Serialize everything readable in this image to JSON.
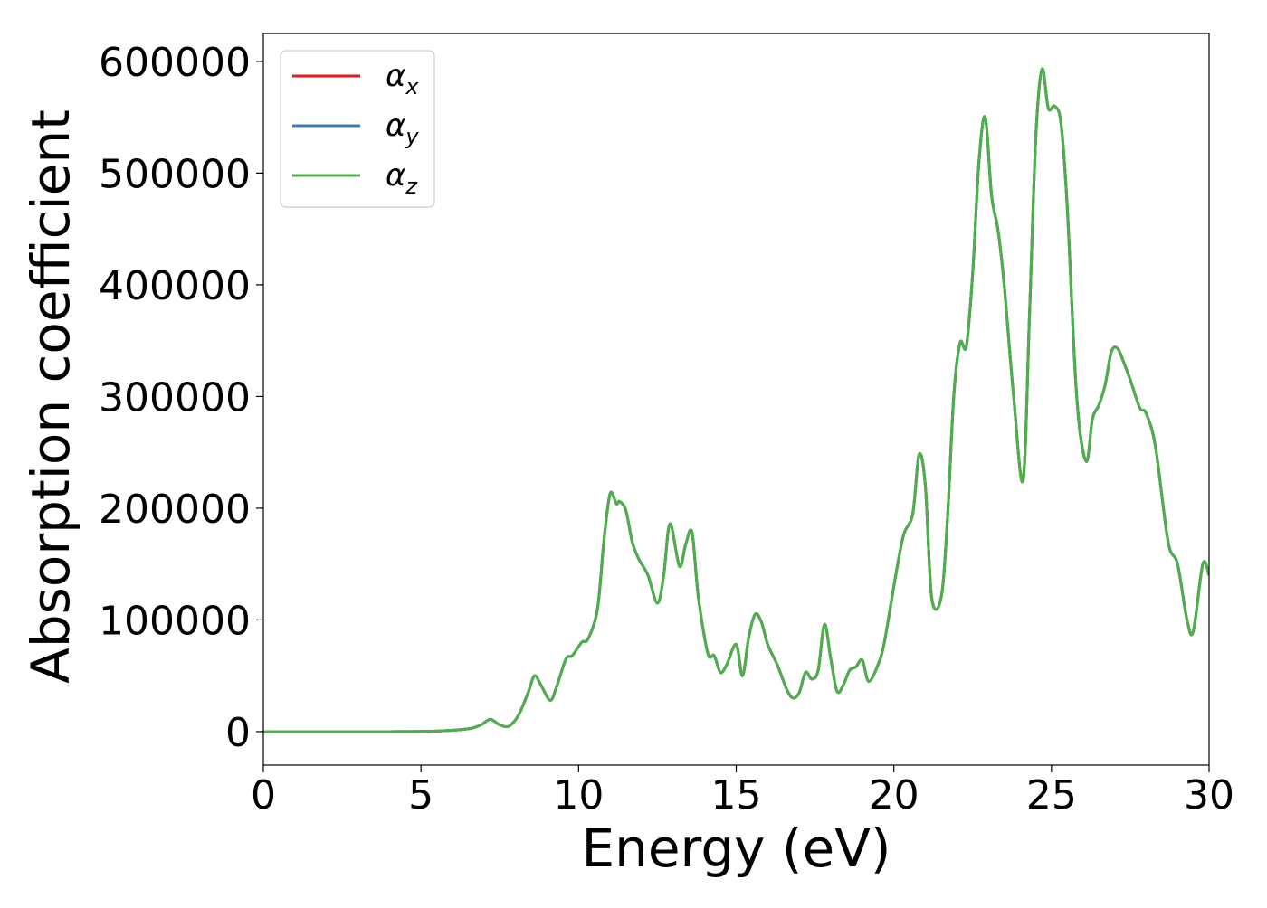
{
  "chart_data": {
    "type": "line",
    "title": "",
    "xlabel": "Energy (eV)",
    "ylabel": "Absorption coefficient",
    "xlim": [
      0,
      30
    ],
    "ylim": [
      -30000,
      625000
    ],
    "xticks": [
      0,
      5,
      10,
      15,
      20,
      25,
      30
    ],
    "yticks": [
      0,
      100000,
      200000,
      300000,
      400000,
      500000,
      600000
    ],
    "grid": false,
    "legend_position": "top-left",
    "x": [
      0,
      2,
      4,
      5.5,
      6.5,
      6.9,
      7.2,
      7.5,
      7.8,
      8.1,
      8.4,
      8.6,
      8.8,
      9.1,
      9.3,
      9.6,
      9.8,
      10.1,
      10.3,
      10.6,
      10.8,
      11.0,
      11.2,
      11.3,
      11.5,
      11.7,
      11.9,
      12.2,
      12.5,
      12.7,
      12.9,
      13.2,
      13.4,
      13.6,
      13.8,
      14.1,
      14.3,
      14.5,
      14.7,
      15.0,
      15.2,
      15.4,
      15.6,
      15.8,
      16.0,
      16.3,
      16.6,
      16.8,
      17.0,
      17.2,
      17.4,
      17.6,
      17.8,
      18.0,
      18.2,
      18.4,
      18.6,
      18.8,
      19.0,
      19.2,
      19.5,
      19.7,
      20.0,
      20.3,
      20.6,
      20.8,
      21.0,
      21.2,
      21.5,
      21.7,
      21.9,
      22.1,
      22.3,
      22.5,
      22.7,
      22.9,
      23.1,
      23.3,
      23.5,
      23.8,
      24.1,
      24.3,
      24.5,
      24.7,
      24.9,
      25.1,
      25.3,
      25.5,
      25.8,
      26.1,
      26.3,
      26.5,
      26.7,
      26.9,
      27.1,
      27.3,
      27.5,
      27.8,
      28.0,
      28.3,
      28.7,
      29.0,
      29.3,
      29.5,
      29.8,
      30.0
    ],
    "series": [
      {
        "name": "α_x",
        "color": "#e41a1c",
        "values": [
          0,
          0,
          0,
          500,
          2500,
          6000,
          11000,
          6000,
          5000,
          15000,
          35000,
          50000,
          42000,
          28000,
          40000,
          65000,
          68000,
          80000,
          83000,
          110000,
          170000,
          213000,
          204000,
          206000,
          198000,
          170000,
          155000,
          140000,
          115000,
          140000,
          186000,
          148000,
          168000,
          178000,
          120000,
          70000,
          68000,
          53000,
          60000,
          78000,
          50000,
          85000,
          105000,
          98000,
          78000,
          60000,
          38000,
          30000,
          35000,
          53000,
          47000,
          55000,
          96000,
          65000,
          36000,
          42000,
          55000,
          58000,
          64000,
          45000,
          60000,
          80000,
          130000,
          175000,
          195000,
          248000,
          220000,
          120000,
          120000,
          190000,
          300000,
          348000,
          345000,
          410000,
          510000,
          550000,
          480000,
          450000,
          400000,
          300000,
          225000,
          370000,
          530000,
          593000,
          558000,
          560000,
          545000,
          470000,
          300000,
          242000,
          280000,
          292000,
          310000,
          340000,
          343000,
          330000,
          315000,
          290000,
          285000,
          255000,
          170000,
          150000,
          100000,
          90000,
          150000,
          140000
        ]
      },
      {
        "name": "α_y",
        "color": "#377eb8",
        "values": [
          0,
          0,
          0,
          500,
          2500,
          6000,
          11000,
          6000,
          5000,
          15000,
          35000,
          50000,
          42000,
          28000,
          40000,
          65000,
          68000,
          80000,
          83000,
          110000,
          170000,
          213000,
          204000,
          206000,
          198000,
          170000,
          155000,
          140000,
          115000,
          140000,
          186000,
          148000,
          168000,
          178000,
          120000,
          70000,
          68000,
          53000,
          60000,
          78000,
          50000,
          85000,
          105000,
          98000,
          78000,
          60000,
          38000,
          30000,
          35000,
          53000,
          47000,
          55000,
          96000,
          65000,
          36000,
          42000,
          55000,
          58000,
          64000,
          45000,
          60000,
          80000,
          130000,
          175000,
          195000,
          248000,
          220000,
          120000,
          120000,
          190000,
          300000,
          348000,
          345000,
          410000,
          510000,
          550000,
          480000,
          450000,
          400000,
          300000,
          225000,
          370000,
          530000,
          593000,
          558000,
          560000,
          545000,
          470000,
          300000,
          242000,
          280000,
          292000,
          310000,
          340000,
          343000,
          330000,
          315000,
          290000,
          285000,
          255000,
          170000,
          150000,
          100000,
          90000,
          150000,
          140000
        ]
      },
      {
        "name": "α_z",
        "color": "#4daf4a",
        "values": [
          0,
          0,
          0,
          500,
          2500,
          6000,
          11000,
          6000,
          5000,
          15000,
          35000,
          50000,
          42000,
          28000,
          40000,
          65000,
          68000,
          80000,
          83000,
          110000,
          170000,
          213000,
          204000,
          206000,
          198000,
          170000,
          155000,
          140000,
          115000,
          140000,
          186000,
          148000,
          168000,
          178000,
          120000,
          70000,
          68000,
          53000,
          60000,
          78000,
          50000,
          85000,
          105000,
          98000,
          78000,
          60000,
          38000,
          30000,
          35000,
          53000,
          47000,
          55000,
          96000,
          65000,
          36000,
          42000,
          55000,
          58000,
          64000,
          45000,
          60000,
          80000,
          130000,
          175000,
          195000,
          248000,
          220000,
          120000,
          120000,
          190000,
          300000,
          348000,
          345000,
          410000,
          510000,
          550000,
          480000,
          450000,
          400000,
          300000,
          225000,
          370000,
          530000,
          593000,
          558000,
          560000,
          545000,
          470000,
          300000,
          242000,
          280000,
          292000,
          310000,
          340000,
          343000,
          330000,
          315000,
          290000,
          285000,
          255000,
          170000,
          150000,
          100000,
          90000,
          150000,
          140000
        ]
      }
    ],
    "legend": [
      {
        "symbol": "α",
        "sub": "x",
        "color": "#e41a1c"
      },
      {
        "symbol": "α",
        "sub": "y",
        "color": "#377eb8"
      },
      {
        "symbol": "α",
        "sub": "z",
        "color": "#4daf4a"
      }
    ],
    "xtick_labels": [
      "0",
      "5",
      "10",
      "15",
      "20",
      "25",
      "30"
    ],
    "ytick_labels": [
      "0",
      "100000",
      "200000",
      "300000",
      "400000",
      "500000",
      "600000"
    ]
  }
}
